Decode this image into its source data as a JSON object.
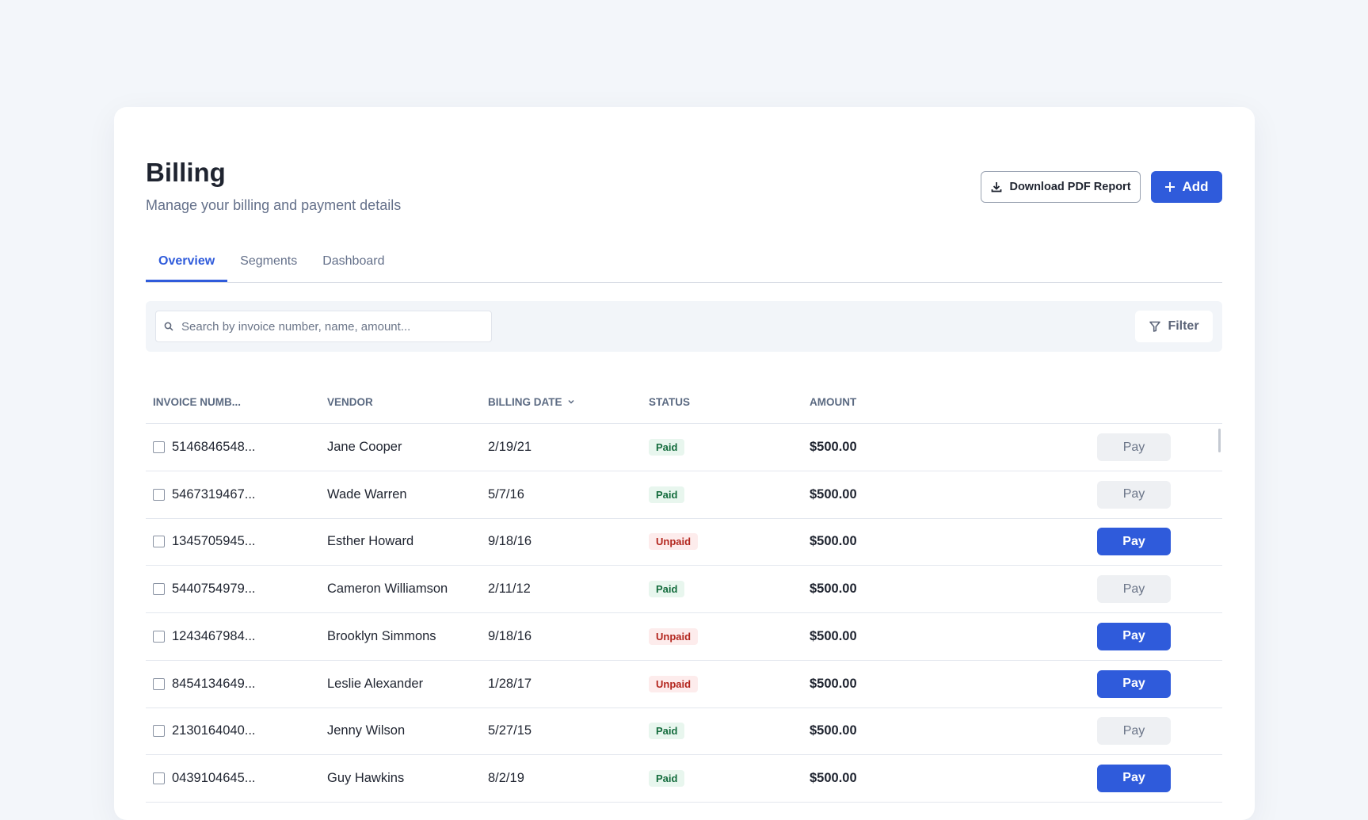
{
  "header": {
    "title": "Billing",
    "subtitle": "Manage your billing and payment details"
  },
  "actions": {
    "download": "Download PDF Report",
    "add": "Add"
  },
  "tabs": {
    "items": [
      "Overview",
      "Segments",
      "Dashboard"
    ],
    "active": 0
  },
  "toolbar": {
    "search_placeholder": "Search by invoice number, name, amount...",
    "filter": "Filter"
  },
  "table": {
    "columns": [
      "INVOICE NUMB...",
      "VENDOR",
      "BILLING DATE",
      "STATUS",
      "AMOUNT"
    ],
    "sorted_column": 2,
    "pay_label": "Pay",
    "rows": [
      {
        "invoice": "5146846548...",
        "vendor": "Jane Cooper",
        "date": "2/19/21",
        "status": "Paid",
        "amount": "$500.00",
        "pay_active": false
      },
      {
        "invoice": "5467319467...",
        "vendor": "Wade Warren",
        "date": "5/7/16",
        "status": "Paid",
        "amount": "$500.00",
        "pay_active": false
      },
      {
        "invoice": "1345705945...",
        "vendor": "Esther Howard",
        "date": "9/18/16",
        "status": "Unpaid",
        "amount": "$500.00",
        "pay_active": true
      },
      {
        "invoice": "5440754979...",
        "vendor": "Cameron Williamson",
        "date": "2/11/12",
        "status": "Paid",
        "amount": "$500.00",
        "pay_active": false
      },
      {
        "invoice": "1243467984...",
        "vendor": "Brooklyn Simmons",
        "date": "9/18/16",
        "status": "Unpaid",
        "amount": "$500.00",
        "pay_active": true
      },
      {
        "invoice": "8454134649...",
        "vendor": "Leslie Alexander",
        "date": "1/28/17",
        "status": "Unpaid",
        "amount": "$500.00",
        "pay_active": true
      },
      {
        "invoice": "2130164040...",
        "vendor": "Jenny Wilson",
        "date": "5/27/15",
        "status": "Paid",
        "amount": "$500.00",
        "pay_active": false
      },
      {
        "invoice": "0439104645...",
        "vendor": "Guy Hawkins",
        "date": "8/2/19",
        "status": "Paid",
        "amount": "$500.00",
        "pay_active": true
      }
    ]
  }
}
